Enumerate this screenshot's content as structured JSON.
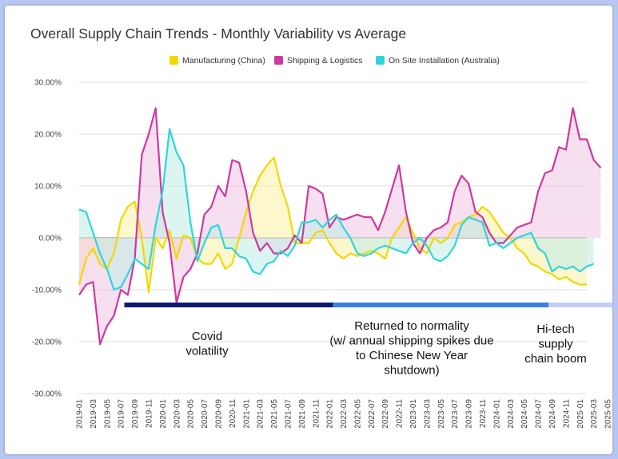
{
  "chart_data": {
    "type": "line",
    "title": "Overall Supply Chain Trends - Monthly Variability vs Average",
    "xlabel": "",
    "ylabel": "",
    "ylim": [
      -30,
      30
    ],
    "y_ticks": [
      "30.00%",
      "20.00%",
      "10.00%",
      "0.00%",
      "-10.00%",
      "-20.00%",
      "-30.00%"
    ],
    "x_tick_labels": [
      "2019-01",
      "2019-03",
      "2019-05",
      "2019-07",
      "2019-09",
      "2019-11",
      "2020-01",
      "2020-03",
      "2020-05",
      "2020-07",
      "2020-09",
      "2020-11",
      "2021-01",
      "2021-03",
      "2021-05",
      "2021-07",
      "2021-09",
      "2021-11",
      "2022-01",
      "2022-03",
      "2022-05",
      "2022-07",
      "2022-09",
      "2022-11",
      "2023-01",
      "2023-03",
      "2023-05",
      "2023-07",
      "2023-09",
      "2023-11",
      "2024-01",
      "2024-03",
      "2024-05",
      "2024-07",
      "2024-09",
      "2024-11",
      "2025-01",
      "2025-03",
      "2025-05",
      "2025-07"
    ],
    "start_month": "2019-01",
    "grid": true,
    "legend_position": "top",
    "series": [
      {
        "name": "Manufacturing (China)",
        "color": "#f2d800",
        "fill": "#fbf0a6",
        "values": [
          -9,
          -4,
          -2,
          -5,
          -6,
          -3,
          3.5,
          6,
          7,
          0,
          -10.5,
          0,
          -2,
          1.5,
          -4,
          0.5,
          0,
          -4,
          -5,
          -5,
          -3,
          -6,
          -5,
          0,
          5,
          9,
          12,
          14,
          15.5,
          10,
          6,
          -1,
          -1,
          -1,
          1,
          1.5,
          -1,
          -3,
          -4,
          -3,
          -3.5,
          -3,
          -2.5,
          -3,
          -4,
          0,
          2,
          4,
          1,
          -2,
          -3,
          0,
          -1,
          0,
          2.5,
          3,
          4,
          4.5,
          6,
          5,
          3,
          1,
          0,
          -2,
          -3,
          -5,
          -5.5,
          -6.5,
          -7,
          -8,
          -7.5,
          -8.5,
          -9,
          -9
        ]
      },
      {
        "name": "Shipping & Logistics",
        "color": "#cc3a9f",
        "fill": "#eec5e2",
        "values": [
          -11,
          -9,
          -8.5,
          -20.5,
          -17,
          -15,
          -10,
          -11,
          -4,
          16,
          20,
          25,
          5,
          -1,
          -12.5,
          -7.5,
          -6,
          -3,
          4.5,
          6,
          10,
          8,
          15,
          14.5,
          9,
          1,
          -2.5,
          -1,
          -3,
          -3,
          -2,
          0.5,
          -1,
          10,
          9.5,
          8.5,
          2,
          4,
          3.5,
          4,
          4.5,
          4,
          4,
          1.5,
          5,
          9.5,
          14,
          5,
          -1,
          -3,
          0,
          1.5,
          2,
          3,
          9,
          12,
          10.5,
          5,
          4,
          1,
          -1,
          -1,
          0.5,
          2,
          2.5,
          3,
          9,
          12.5,
          13,
          17.5,
          17,
          25,
          19,
          19,
          15,
          13.5
        ]
      },
      {
        "name": "On Site Installation (Australia)",
        "color": "#30d5dc",
        "fill": "#bfece5",
        "values": [
          5.5,
          5,
          1,
          -3,
          -6,
          -10,
          -9.5,
          -7,
          -4,
          -5,
          -6,
          2.5,
          9,
          21,
          16.5,
          14,
          3,
          -4.5,
          -1,
          2,
          2.5,
          -2,
          -2,
          -3.5,
          -4,
          -6.5,
          -7,
          -5,
          -4.5,
          -2.5,
          -3.5,
          -1.5,
          3,
          3,
          3.5,
          2,
          3.5,
          4.5,
          2,
          0,
          -3,
          -3.5,
          -3,
          -2,
          -1.5,
          -2,
          -2.5,
          -3,
          -1,
          0,
          -1.5,
          -4,
          -4.5,
          -3.5,
          -1.5,
          2.5,
          4,
          3.5,
          3,
          -1.5,
          -1,
          -2,
          -1,
          0,
          0.5,
          1,
          -2,
          -3,
          -6.5,
          -5.5,
          -6,
          -5.5,
          -6.5,
          -5.5,
          -5
        ]
      }
    ],
    "annotations": [
      {
        "lines": [
          "Covid",
          "volatility"
        ],
        "color": "#0d1a6e",
        "from": "2019-08",
        "to": "2022-01"
      },
      {
        "lines": [
          "Returned to normality",
          "(w/ annual shipping spikes due",
          "to Chinese New Year",
          "shutdown)"
        ],
        "color": "#3d7fe6",
        "from": "2022-02",
        "to": "2024-08"
      },
      {
        "lines": [
          "Hi-tech",
          "supply",
          "chain boom"
        ],
        "color": "#c2cdf6",
        "from": "2024-09",
        "to": "2025-08"
      }
    ]
  }
}
